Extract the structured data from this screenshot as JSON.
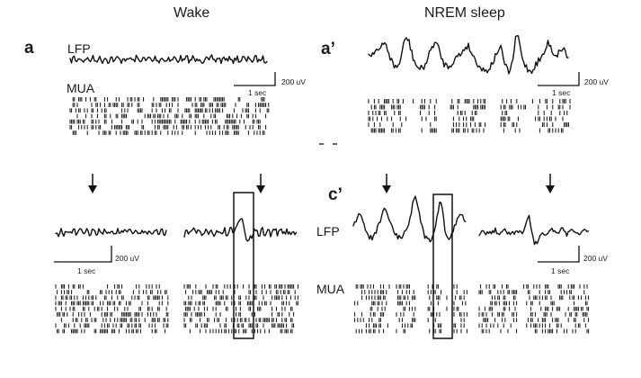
{
  "headings": {
    "wake": "Wake",
    "nrem": "NREM sleep"
  },
  "panels": {
    "a": "a",
    "a_prime": "a’",
    "c_prime": "c’"
  },
  "labels": {
    "lfp_a": "LFP",
    "mua_a": "MUA",
    "lfp_c": "LFP",
    "mua_c": "MUA"
  },
  "scale_bars": {
    "a_time": "1 sec",
    "a_amp": "200 uV",
    "a_prime_time": "1 sec",
    "a_prime_amp": "200 uV",
    "b_time": "1 sec",
    "b_amp": "200 uV",
    "c_time": "1 sec",
    "c_amp": "200 uV"
  },
  "colors": {
    "trace": "#111111",
    "raster": "#111111",
    "text": "#1a1a1a"
  },
  "icons": {
    "event_marker": "down-arrow-icon",
    "highlight": "highlight-box"
  }
}
